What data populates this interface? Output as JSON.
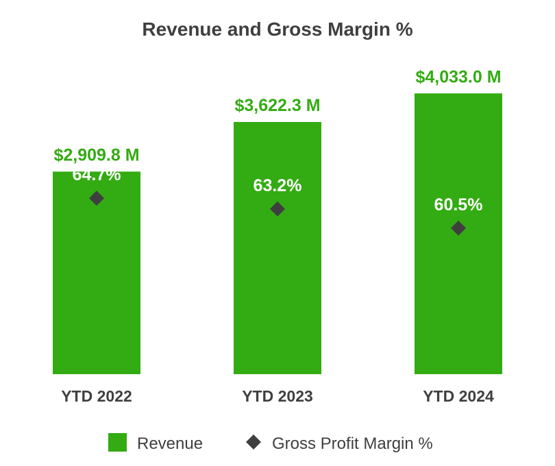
{
  "chart_data": {
    "type": "bar",
    "title": "Revenue and Gross Margin %",
    "categories": [
      "YTD 2022",
      "YTD 2023",
      "YTD 2024"
    ],
    "series": [
      {
        "name": "Revenue",
        "unit": "$M",
        "values": [
          2909.8,
          3622.3,
          4033.0
        ],
        "data_labels": [
          "$2,909.8 M",
          "$3,622.3 M",
          "$4,033.0 M"
        ]
      },
      {
        "name": "Gross Profit Margin %",
        "unit": "%",
        "values": [
          64.7,
          63.2,
          60.5
        ],
        "data_labels": [
          "64.7%",
          "63.2%",
          "60.5%"
        ]
      }
    ],
    "xlabel": "",
    "ylabel": "",
    "ylim": [
      0,
      4400
    ],
    "margin_ylim": [
      40,
      83
    ],
    "grid": false,
    "legend_position": "bottom-center"
  },
  "legend": {
    "revenue_label": "Revenue",
    "margin_label": "Gross Profit Margin %"
  },
  "colors": {
    "bar": "#33ab12",
    "revenue_label": "#33ab12",
    "marker": "#3f3f3f",
    "text": "#3f3f3f",
    "margin_label": "#ffffff"
  },
  "icons": {
    "revenue_swatch": "green-square-icon",
    "margin_marker": "diamond-icon"
  }
}
